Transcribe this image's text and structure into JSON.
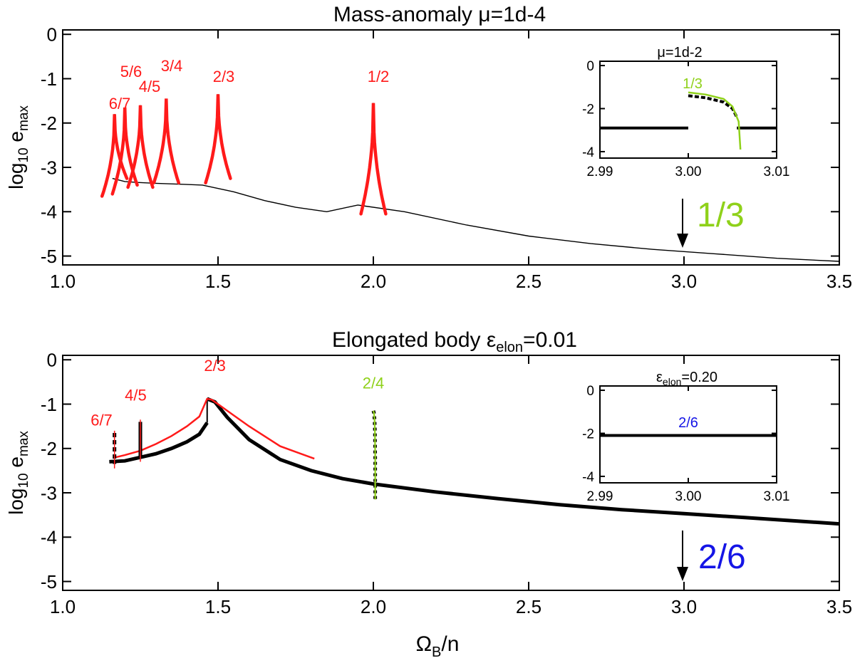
{
  "colors": {
    "black": "#000000",
    "red": "#ff1a1a",
    "green": "#8fd11a",
    "blue": "#1515e6"
  },
  "chart_data": [
    {
      "id": "top",
      "type": "line",
      "title": {
        "prefix": "Mass-anomaly ",
        "sym": "μ",
        "suffix": "=1d-4"
      },
      "xlabel": {
        "main": "Ω",
        "sub": "B",
        "rest": "/n"
      },
      "ylabel": {
        "main": "log",
        "sub": "10",
        "rest": " e",
        "sub2": "max"
      },
      "xlim": [
        1.0,
        3.5
      ],
      "ylim": [
        -5.2,
        0.1
      ],
      "xticks": [
        1.0,
        1.5,
        2.0,
        2.5,
        3.0,
        3.5
      ],
      "xticklabels": [
        "1.0",
        "1.5",
        "2.0",
        "2.5",
        "3.0",
        "3.5"
      ],
      "yticks": [
        0,
        -1,
        -2,
        -3,
        -4,
        -5
      ],
      "yticklabels": [
        "0",
        "-1",
        "-2",
        "-3",
        "-4",
        "-5"
      ],
      "background_curve": {
        "x": [
          1.16,
          1.2,
          1.24,
          1.3,
          1.38,
          1.45,
          1.55,
          1.65,
          1.75,
          1.85,
          1.95,
          2.1,
          2.3,
          2.5,
          2.7,
          2.9,
          3.1,
          3.3,
          3.5
        ],
        "y": [
          -3.25,
          -3.32,
          -3.34,
          -3.36,
          -3.38,
          -3.4,
          -3.55,
          -3.75,
          -3.9,
          -4.0,
          -3.85,
          -4.0,
          -4.3,
          -4.55,
          -4.72,
          -4.85,
          -4.95,
          -5.05,
          -5.12
        ]
      },
      "resonances": [
        {
          "label": "6/7",
          "x0": 1.1667,
          "peak": -1.8,
          "left_end": -3.65,
          "right_end": -3.25,
          "color": "red"
        },
        {
          "label": "5/6",
          "x0": 1.2,
          "peak": -1.65,
          "left_end": -3.6,
          "right_end": -3.4,
          "color": "red"
        },
        {
          "label": "4/5",
          "x0": 1.25,
          "peak": -1.6,
          "left_end": -3.45,
          "right_end": -3.45,
          "color": "red"
        },
        {
          "label": "3/4",
          "x0": 1.3333,
          "peak": -1.45,
          "left_end": -3.35,
          "right_end": -3.35,
          "color": "red"
        },
        {
          "label": "2/3",
          "x0": 1.5,
          "peak": -1.35,
          "left_end": -3.35,
          "right_end": -3.25,
          "color": "red"
        },
        {
          "label": "1/2",
          "x0": 2.0,
          "peak": -1.55,
          "left_end": -4.05,
          "right_end": -4.05,
          "color": "red"
        }
      ],
      "marker": {
        "x": 3.0,
        "label": "1/3",
        "color": "green"
      },
      "inset": {
        "title": {
          "sym": "μ",
          "suffix": "=1d-2"
        },
        "xlim": [
          2.99,
          3.01
        ],
        "ylim": [
          -4.3,
          0.2
        ],
        "xticks": [
          2.99,
          3.0,
          3.01
        ],
        "xticklabels": [
          "2.99",
          "3.00",
          "3.01"
        ],
        "yticks": [
          0,
          -2,
          -4
        ],
        "yticklabels": [
          "0",
          "-2",
          "-4"
        ],
        "label": "1/3",
        "black_flat": -2.9,
        "black_mid": {
          "x": [
            3.0,
            3.002,
            3.004,
            3.005,
            3.0055
          ],
          "y": [
            -1.4,
            -1.5,
            -1.7,
            -2.0,
            -2.4
          ]
        },
        "green_curve": {
          "x": [
            3.0,
            3.002,
            3.004,
            3.005,
            3.0057,
            3.0059
          ],
          "y": [
            -1.25,
            -1.35,
            -1.55,
            -1.9,
            -2.6,
            -3.9
          ]
        }
      }
    },
    {
      "id": "bottom",
      "type": "line",
      "title": {
        "prefix": "Elongated body  ",
        "sym": "ε",
        "sub": "elon",
        "suffix": "=0.01"
      },
      "xlabel": {
        "main": "Ω",
        "sub": "B",
        "rest": "/n"
      },
      "ylabel": {
        "main": "log",
        "sub": "10",
        "rest": " e",
        "sub2": "max"
      },
      "xlim": [
        1.0,
        3.5
      ],
      "ylim": [
        -5.2,
        0.1
      ],
      "xticks": [
        1.0,
        1.5,
        2.0,
        2.5,
        3.0,
        3.5
      ],
      "xticklabels": [
        "1.0",
        "1.5",
        "2.0",
        "2.5",
        "3.0",
        "3.5"
      ],
      "yticks": [
        0,
        -1,
        -2,
        -3,
        -4,
        -5
      ],
      "yticklabels": [
        "0",
        "-1",
        "-2",
        "-3",
        "-4",
        "-5"
      ],
      "black_low": {
        "x": [
          1.15,
          1.2,
          1.25,
          1.3,
          1.35,
          1.4,
          1.44,
          1.465
        ],
        "y": [
          -2.3,
          -2.28,
          -2.2,
          -2.12,
          -2.0,
          -1.85,
          -1.68,
          -1.42
        ]
      },
      "black_high": {
        "x": [
          1.465,
          1.49,
          1.53,
          1.6,
          1.7,
          1.8,
          1.9,
          2.0,
          2.2,
          2.4,
          2.6,
          2.8,
          3.0,
          3.2,
          3.5
        ],
        "y": [
          -0.88,
          -0.95,
          -1.3,
          -1.8,
          -2.25,
          -2.5,
          -2.68,
          -2.8,
          -2.98,
          -3.13,
          -3.27,
          -3.38,
          -3.47,
          -3.56,
          -3.7
        ]
      },
      "red_curve": {
        "x": [
          1.17,
          1.2,
          1.25,
          1.3,
          1.35,
          1.4,
          1.44,
          1.465,
          1.48,
          1.5,
          1.55,
          1.6,
          1.7,
          1.81
        ],
        "y": [
          -2.2,
          -2.15,
          -2.05,
          -1.9,
          -1.72,
          -1.5,
          -1.28,
          -0.88,
          -0.9,
          -1.0,
          -1.25,
          -1.5,
          -1.95,
          -2.23
        ]
      },
      "spikes": [
        {
          "x": 1.1667,
          "top": -1.65,
          "bottom": -2.35,
          "color": "black",
          "dashed": true
        },
        {
          "x": 1.25,
          "top": -1.4,
          "bottom": -2.2,
          "color": "black",
          "dashed": false
        }
      ],
      "green_spike": {
        "x": [
          2.0,
          2.002,
          2.004,
          2.005,
          2.006,
          2.006
        ],
        "y": [
          -1.15,
          -1.2,
          -1.35,
          -1.6,
          -2.2,
          -3.15
        ]
      },
      "labels": [
        {
          "text": "6/7",
          "x": 1.125,
          "y": -1.48,
          "color": "red"
        },
        {
          "text": "4/5",
          "x": 1.235,
          "y": -0.92,
          "color": "red"
        },
        {
          "text": "2/3",
          "x": 1.49,
          "y": -0.25,
          "color": "red"
        },
        {
          "text": "2/4",
          "x": 2.0,
          "y": -0.65,
          "color": "green"
        }
      ],
      "marker": {
        "x": 3.0,
        "label": "2/6",
        "color": "blue"
      },
      "inset": {
        "title": {
          "sym": "ε",
          "sub": "elon",
          "suffix": "=0.20"
        },
        "xlim": [
          2.99,
          3.01
        ],
        "ylim": [
          -4.3,
          0.2
        ],
        "xticks": [
          2.99,
          3.0,
          3.01
        ],
        "xticklabels": [
          "2.99",
          "3.00",
          "3.01"
        ],
        "yticks": [
          0,
          -2,
          -4
        ],
        "yticklabels": [
          "0",
          "-2",
          "-4"
        ],
        "label": "2/6",
        "black_flat": -2.1
      }
    }
  ]
}
